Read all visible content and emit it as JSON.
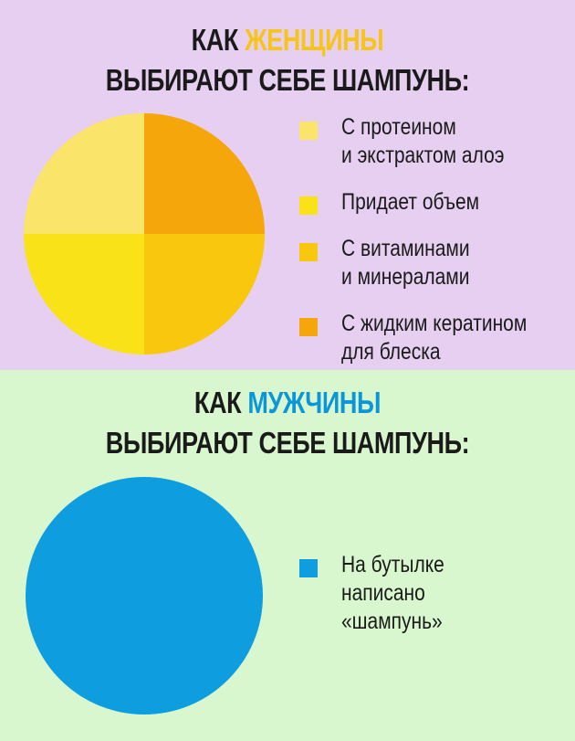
{
  "colors": {
    "women_background": "#e6cff0",
    "men_background": "#d9f7cf",
    "women_highlight": "#f6c519",
    "men_highlight": "#0a96d8",
    "title_text": "#1a1a1a"
  },
  "women": {
    "title_prefix": "КАК ",
    "title_highlight": "ЖЕНЩИНЫ",
    "title_line2": "ВЫБИРАЮТ СЕБЕ ШАМПУНЬ:"
  },
  "men": {
    "title_prefix": "КАК ",
    "title_highlight": "МУЖЧИНЫ",
    "title_line2": "ВЫБИРАЮТ СЕБЕ ШАМПУНЬ:"
  },
  "chart_data": [
    {
      "type": "pie",
      "title": "КАК ЖЕНЩИНЫ ВЫБИРАЮТ СЕБЕ ШАМПУНЬ:",
      "legend_position": "right",
      "slices": [
        {
          "label": "С протеином\nи экстрактом алоэ",
          "value": 25,
          "color": "#fbe46a"
        },
        {
          "label": "Придает объем",
          "value": 25,
          "color": "#f9e217"
        },
        {
          "label": "С витаминами\nи минералами",
          "value": 25,
          "color": "#f9c80e"
        },
        {
          "label": "С жидким кератином\nдля блеска",
          "value": 25,
          "color": "#f4a60a"
        }
      ]
    },
    {
      "type": "pie",
      "title": "КАК МУЖЧИНЫ ВЫБИРАЮТ СЕБЕ ШАМПУНЬ:",
      "legend_position": "right",
      "slices": [
        {
          "label": "На бутылке\nнаписано\n«шампунь»",
          "value": 100,
          "color": "#0e9ee0"
        }
      ]
    }
  ]
}
